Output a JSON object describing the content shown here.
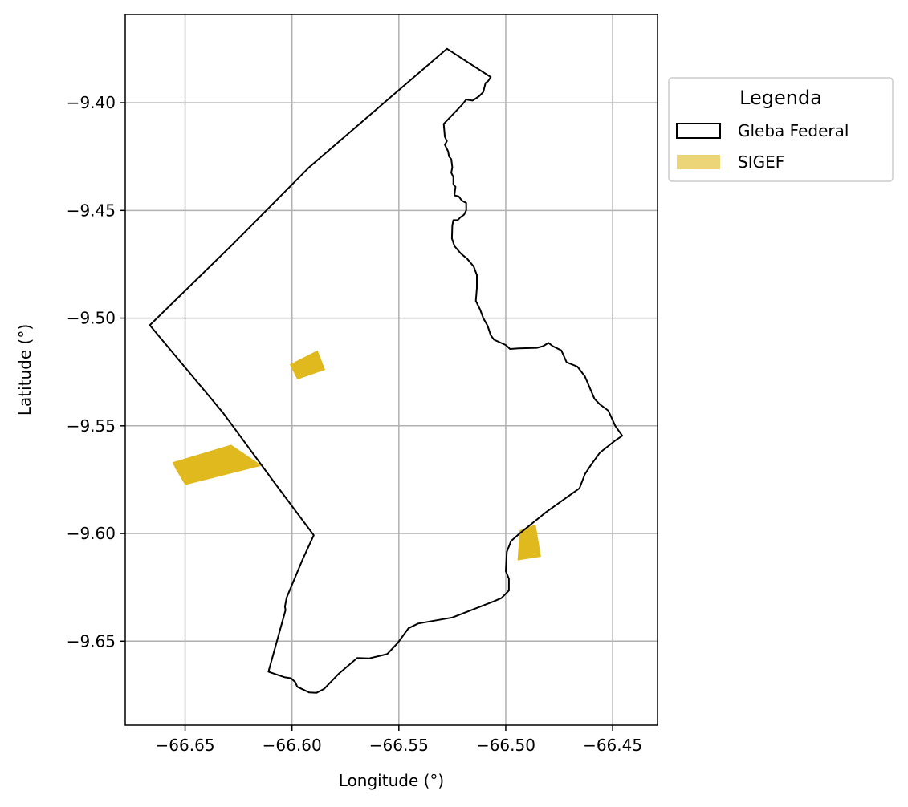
{
  "chart_data": {
    "type": "map",
    "xlabel": "Longitude (°)",
    "ylabel": "Latitude (°)",
    "xlim": [
      -66.678,
      -66.429
    ],
    "ylim": [
      -9.689,
      -9.359
    ],
    "xticks": [
      -66.65,
      -66.6,
      -66.55,
      -66.5,
      -66.45
    ],
    "xtick_labels": [
      "−66.65",
      "−66.60",
      "−66.55",
      "−66.50",
      "−66.45"
    ],
    "yticks": [
      -9.4,
      -9.45,
      -9.5,
      -9.55,
      -9.6,
      -9.65
    ],
    "ytick_labels": [
      "−9.40",
      "−9.45",
      "−9.50",
      "−9.55",
      "−9.60",
      "−9.65"
    ],
    "grid": true,
    "legend": {
      "title": "Legenda",
      "placement": "outside-upper-right",
      "entries": [
        {
          "label": "Gleba Federal",
          "style": "outline",
          "color": "#000000"
        },
        {
          "label": "SIGEF",
          "style": "fill",
          "color": "#e0b91f"
        }
      ]
    },
    "series": [
      {
        "name": "Gleba Federal",
        "kind": "outline",
        "color": "#000000",
        "polygons": [
          [
            [
              -66.5275,
              -9.3749
            ],
            [
              -66.507,
              -9.3881
            ],
            [
              -66.5083,
              -9.39
            ],
            [
              -66.5095,
              -9.3909
            ],
            [
              -66.5105,
              -9.395
            ],
            [
              -66.5125,
              -9.397
            ],
            [
              -66.5155,
              -9.399
            ],
            [
              -66.5185,
              -9.3985
            ],
            [
              -66.5205,
              -9.401
            ],
            [
              -66.529,
              -9.4098
            ],
            [
              -66.5285,
              -9.4158
            ],
            [
              -66.5275,
              -9.4178
            ],
            [
              -66.5285,
              -9.4195
            ],
            [
              -66.527,
              -9.4225
            ],
            [
              -66.5265,
              -9.425
            ],
            [
              -66.5255,
              -9.4262
            ],
            [
              -66.525,
              -9.43
            ],
            [
              -66.5255,
              -9.4325
            ],
            [
              -66.5245,
              -9.4345
            ],
            [
              -66.5245,
              -9.438
            ],
            [
              -66.5235,
              -9.439
            ],
            [
              -66.524,
              -9.443
            ],
            [
              -66.522,
              -9.4435
            ],
            [
              -66.5205,
              -9.4455
            ],
            [
              -66.5185,
              -9.4465
            ],
            [
              -66.5185,
              -9.45
            ],
            [
              -66.5195,
              -9.452
            ],
            [
              -66.521,
              -9.453
            ],
            [
              -66.5225,
              -9.4545
            ],
            [
              -66.5245,
              -9.4545
            ],
            [
              -66.525,
              -9.457
            ],
            [
              -66.5252,
              -9.463
            ],
            [
              -66.524,
              -9.4665
            ],
            [
              -66.521,
              -9.47
            ],
            [
              -66.518,
              -9.4725
            ],
            [
              -66.515,
              -9.476
            ],
            [
              -66.5135,
              -9.48
            ],
            [
              -66.5135,
              -9.486
            ],
            [
              -66.514,
              -9.492
            ],
            [
              -66.512,
              -9.496
            ],
            [
              -66.5105,
              -9.5
            ],
            [
              -66.5085,
              -9.5035
            ],
            [
              -66.507,
              -9.508
            ],
            [
              -66.5055,
              -9.51
            ],
            [
              -66.5,
              -9.5125
            ],
            [
              -66.498,
              -9.5143
            ],
            [
              -66.494,
              -9.514
            ],
            [
              -66.4855,
              -9.5138
            ],
            [
              -66.4825,
              -9.513
            ],
            [
              -66.48,
              -9.5115
            ],
            [
              -66.478,
              -9.513
            ],
            [
              -66.474,
              -9.515
            ],
            [
              -66.4715,
              -9.5205
            ],
            [
              -66.4665,
              -9.5225
            ],
            [
              -66.463,
              -9.527
            ],
            [
              -66.4585,
              -9.5375
            ],
            [
              -66.456,
              -9.54
            ],
            [
              -66.452,
              -9.543
            ],
            [
              -66.4488,
              -9.55
            ],
            [
              -66.4455,
              -9.5546
            ],
            [
              -66.449,
              -9.557
            ],
            [
              -66.456,
              -9.5625
            ],
            [
              -66.46,
              -9.568
            ],
            [
              -66.463,
              -9.5725
            ],
            [
              -66.4655,
              -9.579
            ],
            [
              -66.481,
              -9.59
            ],
            [
              -66.4935,
              -9.6
            ],
            [
              -66.4975,
              -9.6035
            ],
            [
              -66.4995,
              -9.6085
            ],
            [
              -66.5,
              -9.6175
            ],
            [
              -66.4985,
              -9.621
            ],
            [
              -66.4985,
              -9.6265
            ],
            [
              -66.502,
              -9.63
            ],
            [
              -66.5055,
              -9.6315
            ],
            [
              -66.525,
              -9.639
            ],
            [
              -66.541,
              -9.6418
            ],
            [
              -66.5455,
              -9.644
            ],
            [
              -66.5505,
              -9.6508
            ],
            [
              -66.5555,
              -9.656
            ],
            [
              -66.564,
              -9.658
            ],
            [
              -66.5695,
              -9.6578
            ],
            [
              -66.578,
              -9.665
            ],
            [
              -66.585,
              -9.6722
            ],
            [
              -66.5885,
              -9.674
            ],
            [
              -66.592,
              -9.6738
            ],
            [
              -66.5975,
              -9.6712
            ],
            [
              -66.5985,
              -9.669
            ],
            [
              -66.6005,
              -9.6672
            ],
            [
              -66.6033,
              -9.6668
            ],
            [
              -66.611,
              -9.6642
            ],
            [
              -66.603,
              -9.6355
            ],
            [
              -66.6033,
              -9.634
            ],
            [
              -66.6025,
              -9.6298
            ],
            [
              -66.595,
              -9.612
            ],
            [
              -66.5898,
              -9.6008
            ],
            [
              -66.6085,
              -9.576
            ],
            [
              -66.6322,
              -9.544
            ],
            [
              -66.6665,
              -9.5033
            ],
            [
              -66.627,
              -9.465
            ],
            [
              -66.592,
              -9.43
            ],
            [
              -66.5275,
              -9.3749
            ]
          ]
        ]
      },
      {
        "name": "SIGEF",
        "kind": "fill",
        "color": "#e0b91f",
        "polygons": [
          [
            [
              -66.601,
              -9.5215
            ],
            [
              -66.588,
              -9.515
            ],
            [
              -66.5845,
              -9.524
            ],
            [
              -66.5975,
              -9.5285
            ]
          ],
          [
            [
              -66.656,
              -9.567
            ],
            [
              -66.6285,
              -9.5588
            ],
            [
              -66.614,
              -9.5685
            ],
            [
              -66.65,
              -9.5775
            ],
            [
              -66.6545,
              -9.57
            ]
          ],
          [
            [
              -66.4935,
              -9.5985
            ],
            [
              -66.486,
              -9.5958
            ],
            [
              -66.4835,
              -9.6108
            ],
            [
              -66.4945,
              -9.6125
            ]
          ]
        ]
      }
    ]
  }
}
